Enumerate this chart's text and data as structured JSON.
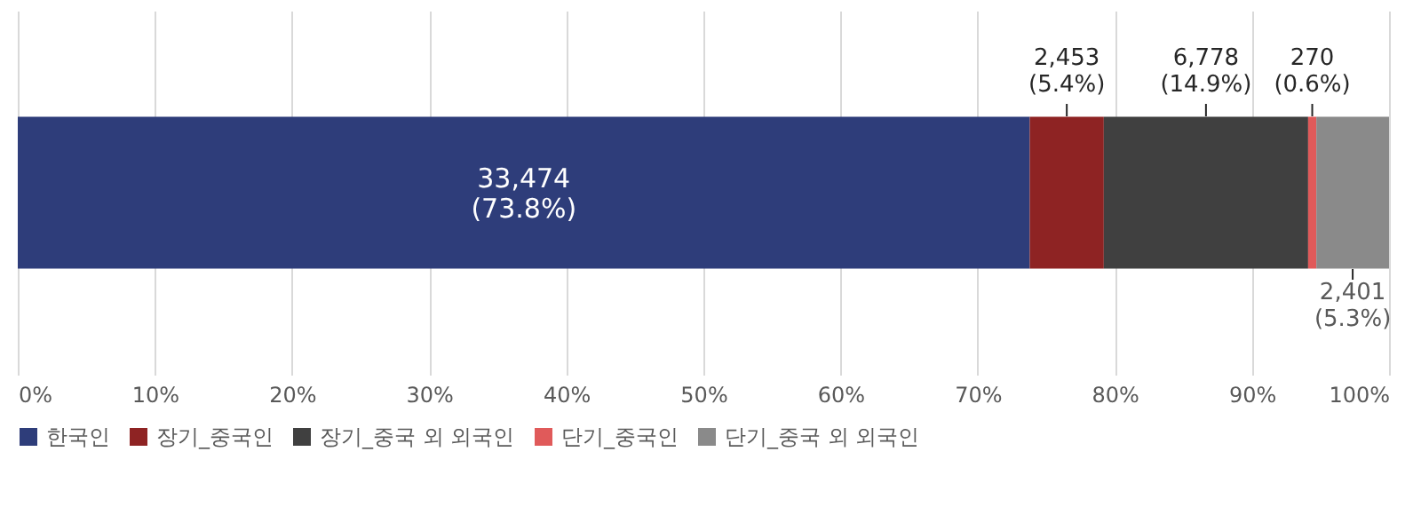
{
  "chart_data": {
    "type": "bar",
    "orientation": "horizontal",
    "stacked": true,
    "categories": [
      null
    ],
    "series": [
      {
        "name": "한국인",
        "color": "#2e3d7a",
        "values": [
          73.8
        ],
        "value_labels": [
          "33,474\n(73.8%)"
        ]
      },
      {
        "name": "장기_중국인",
        "color": "#8e2323",
        "values": [
          5.4
        ],
        "value_labels": [
          "2,453\n(5.4%)"
        ]
      },
      {
        "name": "장기_중국 외 외국인",
        "color": "#404040",
        "values": [
          14.9
        ],
        "value_labels": [
          "6,778\n(14.9%)"
        ]
      },
      {
        "name": "단기_중국인",
        "color": "#e05a5a",
        "values": [
          0.6
        ],
        "value_labels": [
          "270\n(0.6%)"
        ]
      },
      {
        "name": "단기_중국 외 외국인",
        "color": "#8a8a8a",
        "values": [
          5.3
        ],
        "value_labels": [
          "2,401\n(5.3%)"
        ]
      }
    ],
    "xlim": [
      0,
      100
    ],
    "xticks": [
      {
        "value": 0,
        "label": "0%"
      },
      {
        "value": 10,
        "label": "10%"
      },
      {
        "value": 20,
        "label": "20%"
      },
      {
        "value": 30,
        "label": "30%"
      },
      {
        "value": 40,
        "label": "40%"
      },
      {
        "value": 50,
        "label": "50%"
      },
      {
        "value": 60,
        "label": "60%"
      },
      {
        "value": 70,
        "label": "70%"
      },
      {
        "value": 80,
        "label": "80%"
      },
      {
        "value": 90,
        "label": "90%"
      },
      {
        "value": 100,
        "label": "100%"
      }
    ],
    "grid": "x",
    "legend": "bottom"
  }
}
